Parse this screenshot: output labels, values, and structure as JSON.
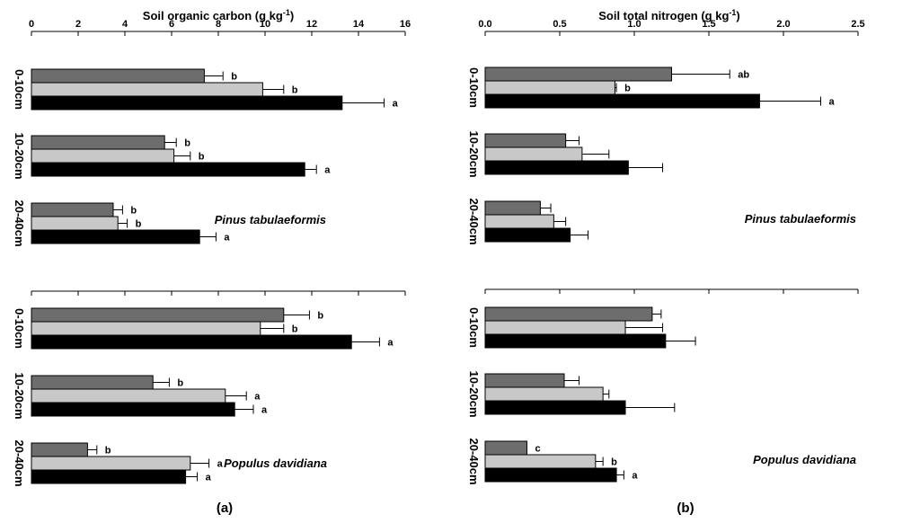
{
  "colors": {
    "series": [
      "#6d6d6d",
      "#c8c8c8",
      "#000000"
    ],
    "background": "#ffffff"
  },
  "chart_data": [
    {
      "type": "bar",
      "orientation": "horizontal",
      "panel_label": "(a)",
      "title": "Soil organic carbon (g kg",
      "title_sup": "-1",
      "title_end": ")",
      "xlim": [
        0,
        16
      ],
      "ticks": [
        "0",
        "2",
        "4",
        "6",
        "8",
        "10",
        "12",
        "14",
        "16"
      ],
      "groups": [
        {
          "species": "Pinus tabulaeformis",
          "depths": [
            {
              "label": "0-10cm",
              "values": [
                7.4,
                9.9,
                13.3
              ],
              "errors": [
                0.8,
                0.9,
                1.8
              ],
              "sig": [
                "b",
                "b",
                "a"
              ]
            },
            {
              "label": "10-20cm",
              "values": [
                5.7,
                6.1,
                11.7
              ],
              "errors": [
                0.5,
                0.7,
                0.5
              ],
              "sig": [
                "b",
                "b",
                "a"
              ]
            },
            {
              "label": "20-40cm",
              "values": [
                3.5,
                3.7,
                7.2
              ],
              "errors": [
                0.4,
                0.4,
                0.7
              ],
              "sig": [
                "b",
                "b",
                "a"
              ]
            }
          ]
        },
        {
          "species": "Populus davidiana",
          "depths": [
            {
              "label": "0-10cm",
              "values": [
                10.8,
                9.8,
                13.7
              ],
              "errors": [
                1.1,
                1.0,
                1.2
              ],
              "sig": [
                "b",
                "b",
                "a"
              ]
            },
            {
              "label": "10-20cm",
              "values": [
                5.2,
                8.3,
                8.7
              ],
              "errors": [
                0.7,
                0.9,
                0.8
              ],
              "sig": [
                "b",
                "a",
                "a"
              ]
            },
            {
              "label": "20-40cm",
              "values": [
                2.4,
                6.8,
                6.6
              ],
              "errors": [
                0.4,
                0.8,
                0.5
              ],
              "sig": [
                "b",
                "a",
                "a"
              ]
            }
          ]
        }
      ]
    },
    {
      "type": "bar",
      "orientation": "horizontal",
      "panel_label": "(b)",
      "title": "Soil total nitrogen (g kg",
      "title_sup": "-1",
      "title_end": ")",
      "xlim": [
        0,
        2.5
      ],
      "ticks": [
        "0.0",
        "0.5",
        "1.0",
        "1.5",
        "2.0",
        "2.5"
      ],
      "groups": [
        {
          "species": "Pinus tabulaeformis",
          "depths": [
            {
              "label": "0-10cm",
              "values": [
                1.25,
                0.87,
                1.84
              ],
              "errors": [
                0.39,
                0.01,
                0.41
              ],
              "sig": [
                "ab",
                "b",
                "a"
              ]
            },
            {
              "label": "10-20cm",
              "values": [
                0.54,
                0.65,
                0.96
              ],
              "errors": [
                0.09,
                0.18,
                0.23
              ],
              "sig": [
                "",
                "",
                ""
              ]
            },
            {
              "label": "20-40cm",
              "values": [
                0.37,
                0.46,
                0.57
              ],
              "errors": [
                0.07,
                0.08,
                0.12
              ],
              "sig": [
                "",
                "",
                ""
              ]
            }
          ]
        },
        {
          "species": "Populus davidiana",
          "depths": [
            {
              "label": "0-10cm",
              "values": [
                1.12,
                0.94,
                1.21
              ],
              "errors": [
                0.06,
                0.25,
                0.2
              ],
              "sig": [
                "",
                "",
                ""
              ]
            },
            {
              "label": "10-20cm",
              "values": [
                0.53,
                0.79,
                0.94
              ],
              "errors": [
                0.1,
                0.04,
                0.33
              ],
              "sig": [
                "",
                "",
                ""
              ]
            },
            {
              "label": "20-40cm",
              "values": [
                0.28,
                0.74,
                0.88
              ],
              "errors": [
                0.0,
                0.05,
                0.05
              ],
              "sig": [
                "c",
                "b",
                "a"
              ]
            }
          ]
        }
      ]
    }
  ]
}
